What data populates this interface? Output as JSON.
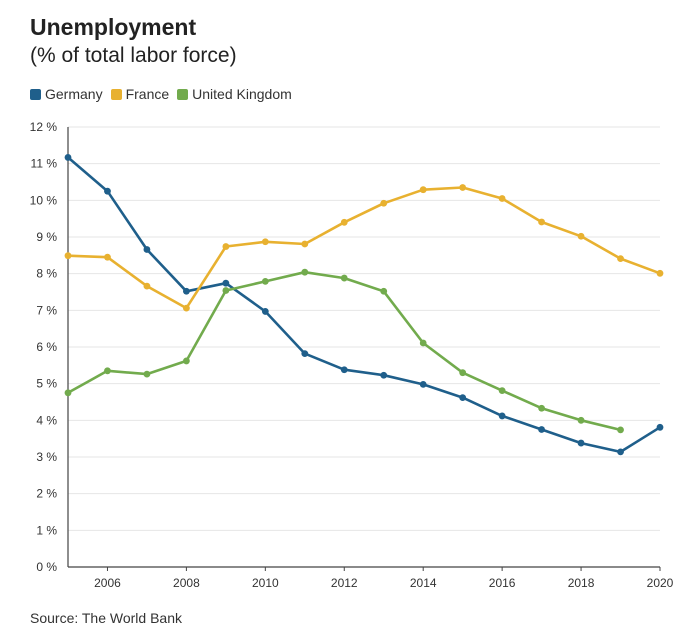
{
  "header": {
    "title": "Unemployment",
    "subtitle": "(% of total labor force)"
  },
  "source": "Source: The World Bank",
  "chart_data": {
    "type": "line",
    "title": "Unemployment",
    "subtitle": "(% of total labor force)",
    "xlabel": "",
    "ylabel": "",
    "xlim": [
      2005,
      2020
    ],
    "ylim": [
      0,
      12
    ],
    "x_ticks": [
      {
        "value": 2006,
        "label": "2006"
      },
      {
        "value": 2008,
        "label": "2008"
      },
      {
        "value": 2010,
        "label": "2010"
      },
      {
        "value": 2012,
        "label": "2012"
      },
      {
        "value": 2014,
        "label": "2014"
      },
      {
        "value": 2016,
        "label": "2016"
      },
      {
        "value": 2018,
        "label": "2018"
      },
      {
        "value": 2020,
        "label": "2020"
      }
    ],
    "y_ticks": [
      {
        "value": 0,
        "label": "0 %"
      },
      {
        "value": 1,
        "label": "1 %"
      },
      {
        "value": 2,
        "label": "2 %"
      },
      {
        "value": 3,
        "label": "3 %"
      },
      {
        "value": 4,
        "label": "4 %"
      },
      {
        "value": 5,
        "label": "5 %"
      },
      {
        "value": 6,
        "label": "6 %"
      },
      {
        "value": 7,
        "label": "7 %"
      },
      {
        "value": 8,
        "label": "8 %"
      },
      {
        "value": 9,
        "label": "9 %"
      },
      {
        "value": 10,
        "label": "10 %"
      },
      {
        "value": 11,
        "label": "11 %"
      },
      {
        "value": 12,
        "label": "12 %"
      }
    ],
    "grid": true,
    "legend_position": "top-left",
    "series": [
      {
        "name": "Germany",
        "color": "#1f5f8b",
        "x": [
          2005,
          2006,
          2007,
          2008,
          2009,
          2010,
          2011,
          2012,
          2013,
          2014,
          2015,
          2016,
          2017,
          2018,
          2019,
          2020
        ],
        "values": [
          11.17,
          10.25,
          8.66,
          7.52,
          7.74,
          6.97,
          5.82,
          5.38,
          5.23,
          4.98,
          4.62,
          4.12,
          3.75,
          3.38,
          3.14,
          3.81
        ]
      },
      {
        "name": "France",
        "color": "#e8b130",
        "x": [
          2005,
          2006,
          2007,
          2008,
          2009,
          2010,
          2011,
          2012,
          2013,
          2014,
          2015,
          2016,
          2017,
          2018,
          2019,
          2020
        ],
        "values": [
          8.49,
          8.45,
          7.66,
          7.06,
          8.74,
          8.87,
          8.81,
          9.4,
          9.92,
          10.29,
          10.35,
          10.05,
          9.41,
          9.02,
          8.41,
          8.01
        ]
      },
      {
        "name": "United Kingdom",
        "color": "#72ab4d",
        "x": [
          2005,
          2006,
          2007,
          2008,
          2009,
          2010,
          2011,
          2012,
          2013,
          2014,
          2015,
          2016,
          2017,
          2018,
          2019
        ],
        "values": [
          4.75,
          5.35,
          5.26,
          5.62,
          7.54,
          7.79,
          8.04,
          7.88,
          7.52,
          6.11,
          5.3,
          4.81,
          4.33,
          4.0,
          3.74
        ]
      }
    ]
  }
}
